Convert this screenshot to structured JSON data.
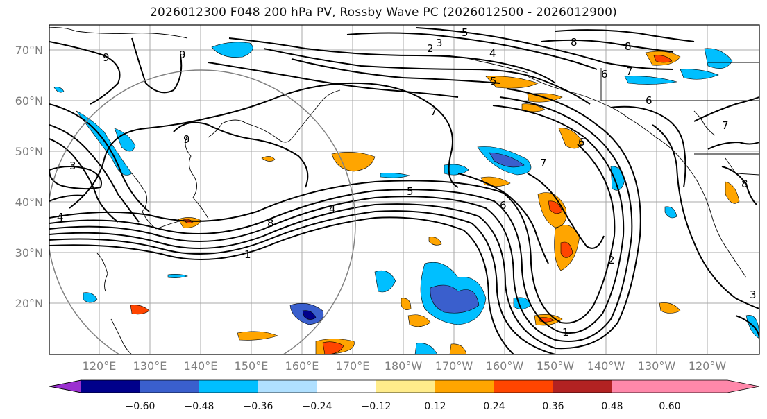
{
  "title": "2026012300 F048 200 hPa PV, Rossby Wave PC (2026012500 - 2026012900)",
  "lat_ticks": [
    "70°N",
    "60°N",
    "50°N",
    "40°N",
    "30°N",
    "20°N"
  ],
  "lon_ticks": [
    "120°E",
    "130°E",
    "140°E",
    "150°E",
    "160°E",
    "170°E",
    "180°W",
    "170°W",
    "160°W",
    "150°W",
    "140°W",
    "130°W",
    "120°W"
  ],
  "colorbar": {
    "colors": [
      "#9b30d0",
      "#00008b",
      "#3a5fcd",
      "#00bfff",
      "#b0e0ff",
      "#ffffff",
      "#ffec8b",
      "#ffa500",
      "#ff4500",
      "#b22222",
      "#ff88aa"
    ],
    "labels": [
      "−0.60",
      "−0.48",
      "−0.36",
      "−0.24",
      "−0.12",
      "0.12",
      "0.24",
      "0.36",
      "0.48",
      "0.60"
    ]
  },
  "contour_labels": [
    "9",
    "9",
    "9",
    "3",
    "4",
    "1",
    "8",
    "4",
    "5",
    "7",
    "2",
    "3",
    "5",
    "4",
    "8",
    "8",
    "6",
    "7",
    "6",
    "5",
    "6",
    "7",
    "6",
    "2",
    "1",
    "3",
    "7",
    "8"
  ]
}
